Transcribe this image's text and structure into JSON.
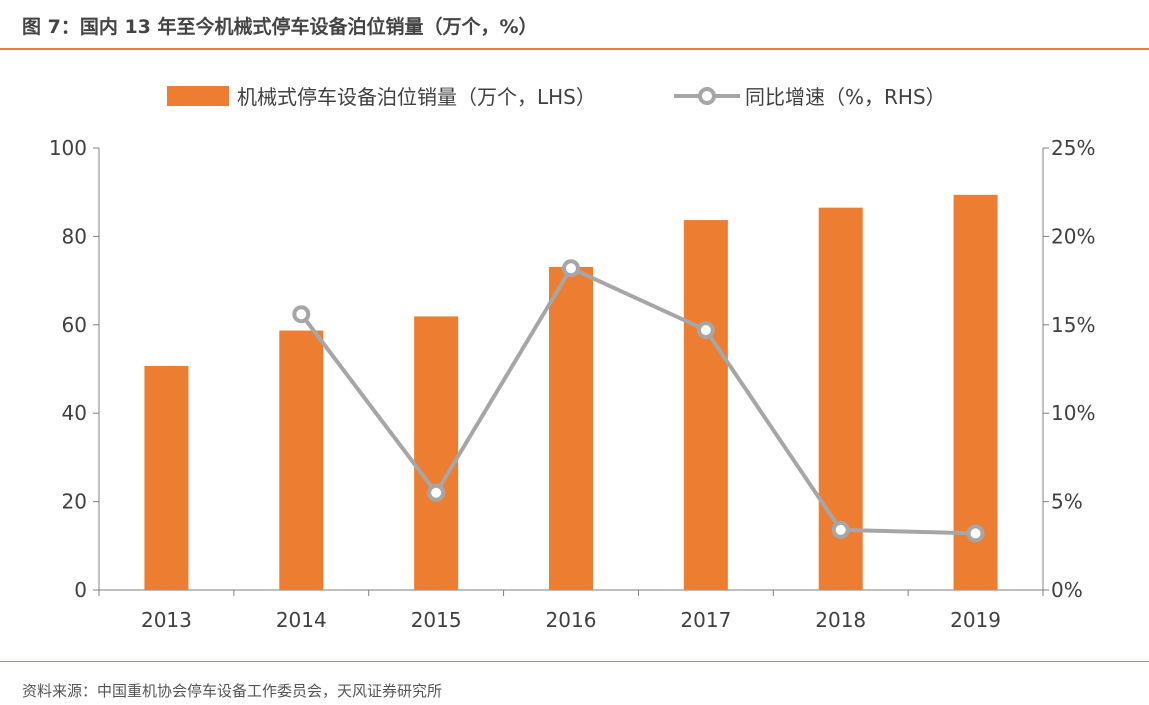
{
  "page": {
    "title": "图 7：国内 13 年至今机械式停车设备泊位销量（万个，%）",
    "source": "资料来源：中国重机协会停车设备工作委员会，天风证券研究所"
  },
  "colors": {
    "bar": "#ed7d31",
    "line": "#a6a6a6",
    "accent": "#ed7d31",
    "axis": "#7f7f7f",
    "text": "#404040"
  },
  "chart_data": {
    "type": "bar+line",
    "categories": [
      "2013",
      "2014",
      "2015",
      "2016",
      "2017",
      "2018",
      "2019"
    ],
    "series": [
      {
        "name": "机械式停车设备泊位销量（万个，LHS）",
        "type": "bar",
        "axis": "left",
        "values": [
          50.7,
          58.7,
          61.9,
          73.1,
          83.7,
          86.5,
          89.4
        ]
      },
      {
        "name": "同比增速（%，RHS）",
        "type": "line",
        "axis": "right",
        "values": [
          null,
          15.6,
          5.5,
          18.2,
          14.7,
          3.4,
          3.2
        ]
      }
    ],
    "left_axis": {
      "min": 0,
      "max": 100,
      "ticks": [
        "0",
        "20",
        "40",
        "60",
        "80",
        "100"
      ]
    },
    "right_axis": {
      "min": 0,
      "max": 25,
      "ticks": [
        "0%",
        "5%",
        "10%",
        "15%",
        "20%",
        "25%"
      ]
    },
    "legend": {
      "position": "top"
    }
  }
}
